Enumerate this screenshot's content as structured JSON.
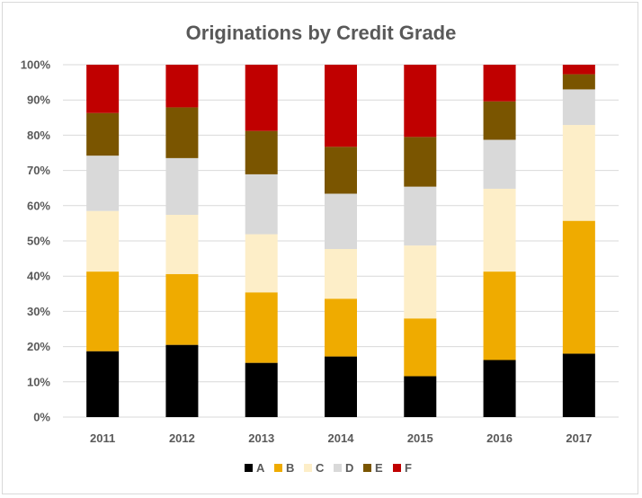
{
  "chart_data": {
    "type": "bar",
    "stacked": "percent",
    "title": "Originations by Credit Grade",
    "xlabel": "",
    "ylabel": "",
    "categories": [
      "2011",
      "2012",
      "2013",
      "2014",
      "2015",
      "2016",
      "2017"
    ],
    "ylim": [
      0,
      100
    ],
    "yticks": [
      "0%",
      "10%",
      "20%",
      "30%",
      "40%",
      "50%",
      "60%",
      "70%",
      "80%",
      "90%",
      "100%"
    ],
    "grid": true,
    "legend_position": "bottom",
    "series": [
      {
        "name": "A",
        "color": "#000000",
        "values": [
          18.7,
          20.5,
          15.4,
          17.2,
          11.6,
          16.2,
          18.0
        ]
      },
      {
        "name": "B",
        "color": "#EFAB00",
        "values": [
          22.6,
          20.1,
          20.0,
          16.4,
          16.4,
          25.1,
          37.7
        ]
      },
      {
        "name": "C",
        "color": "#FDEEC8",
        "values": [
          17.2,
          16.8,
          16.5,
          14.1,
          20.7,
          23.5,
          27.2
        ]
      },
      {
        "name": "D",
        "color": "#D9D9D9",
        "values": [
          15.7,
          16.1,
          17.0,
          15.7,
          16.7,
          13.9,
          10.1
        ]
      },
      {
        "name": "E",
        "color": "#7A5500",
        "values": [
          12.1,
          14.4,
          12.3,
          13.3,
          14.1,
          10.9,
          4.3
        ]
      },
      {
        "name": "F",
        "color": "#C00000",
        "values": [
          13.7,
          12.1,
          18.8,
          23.3,
          20.5,
          10.4,
          2.7
        ]
      }
    ]
  }
}
